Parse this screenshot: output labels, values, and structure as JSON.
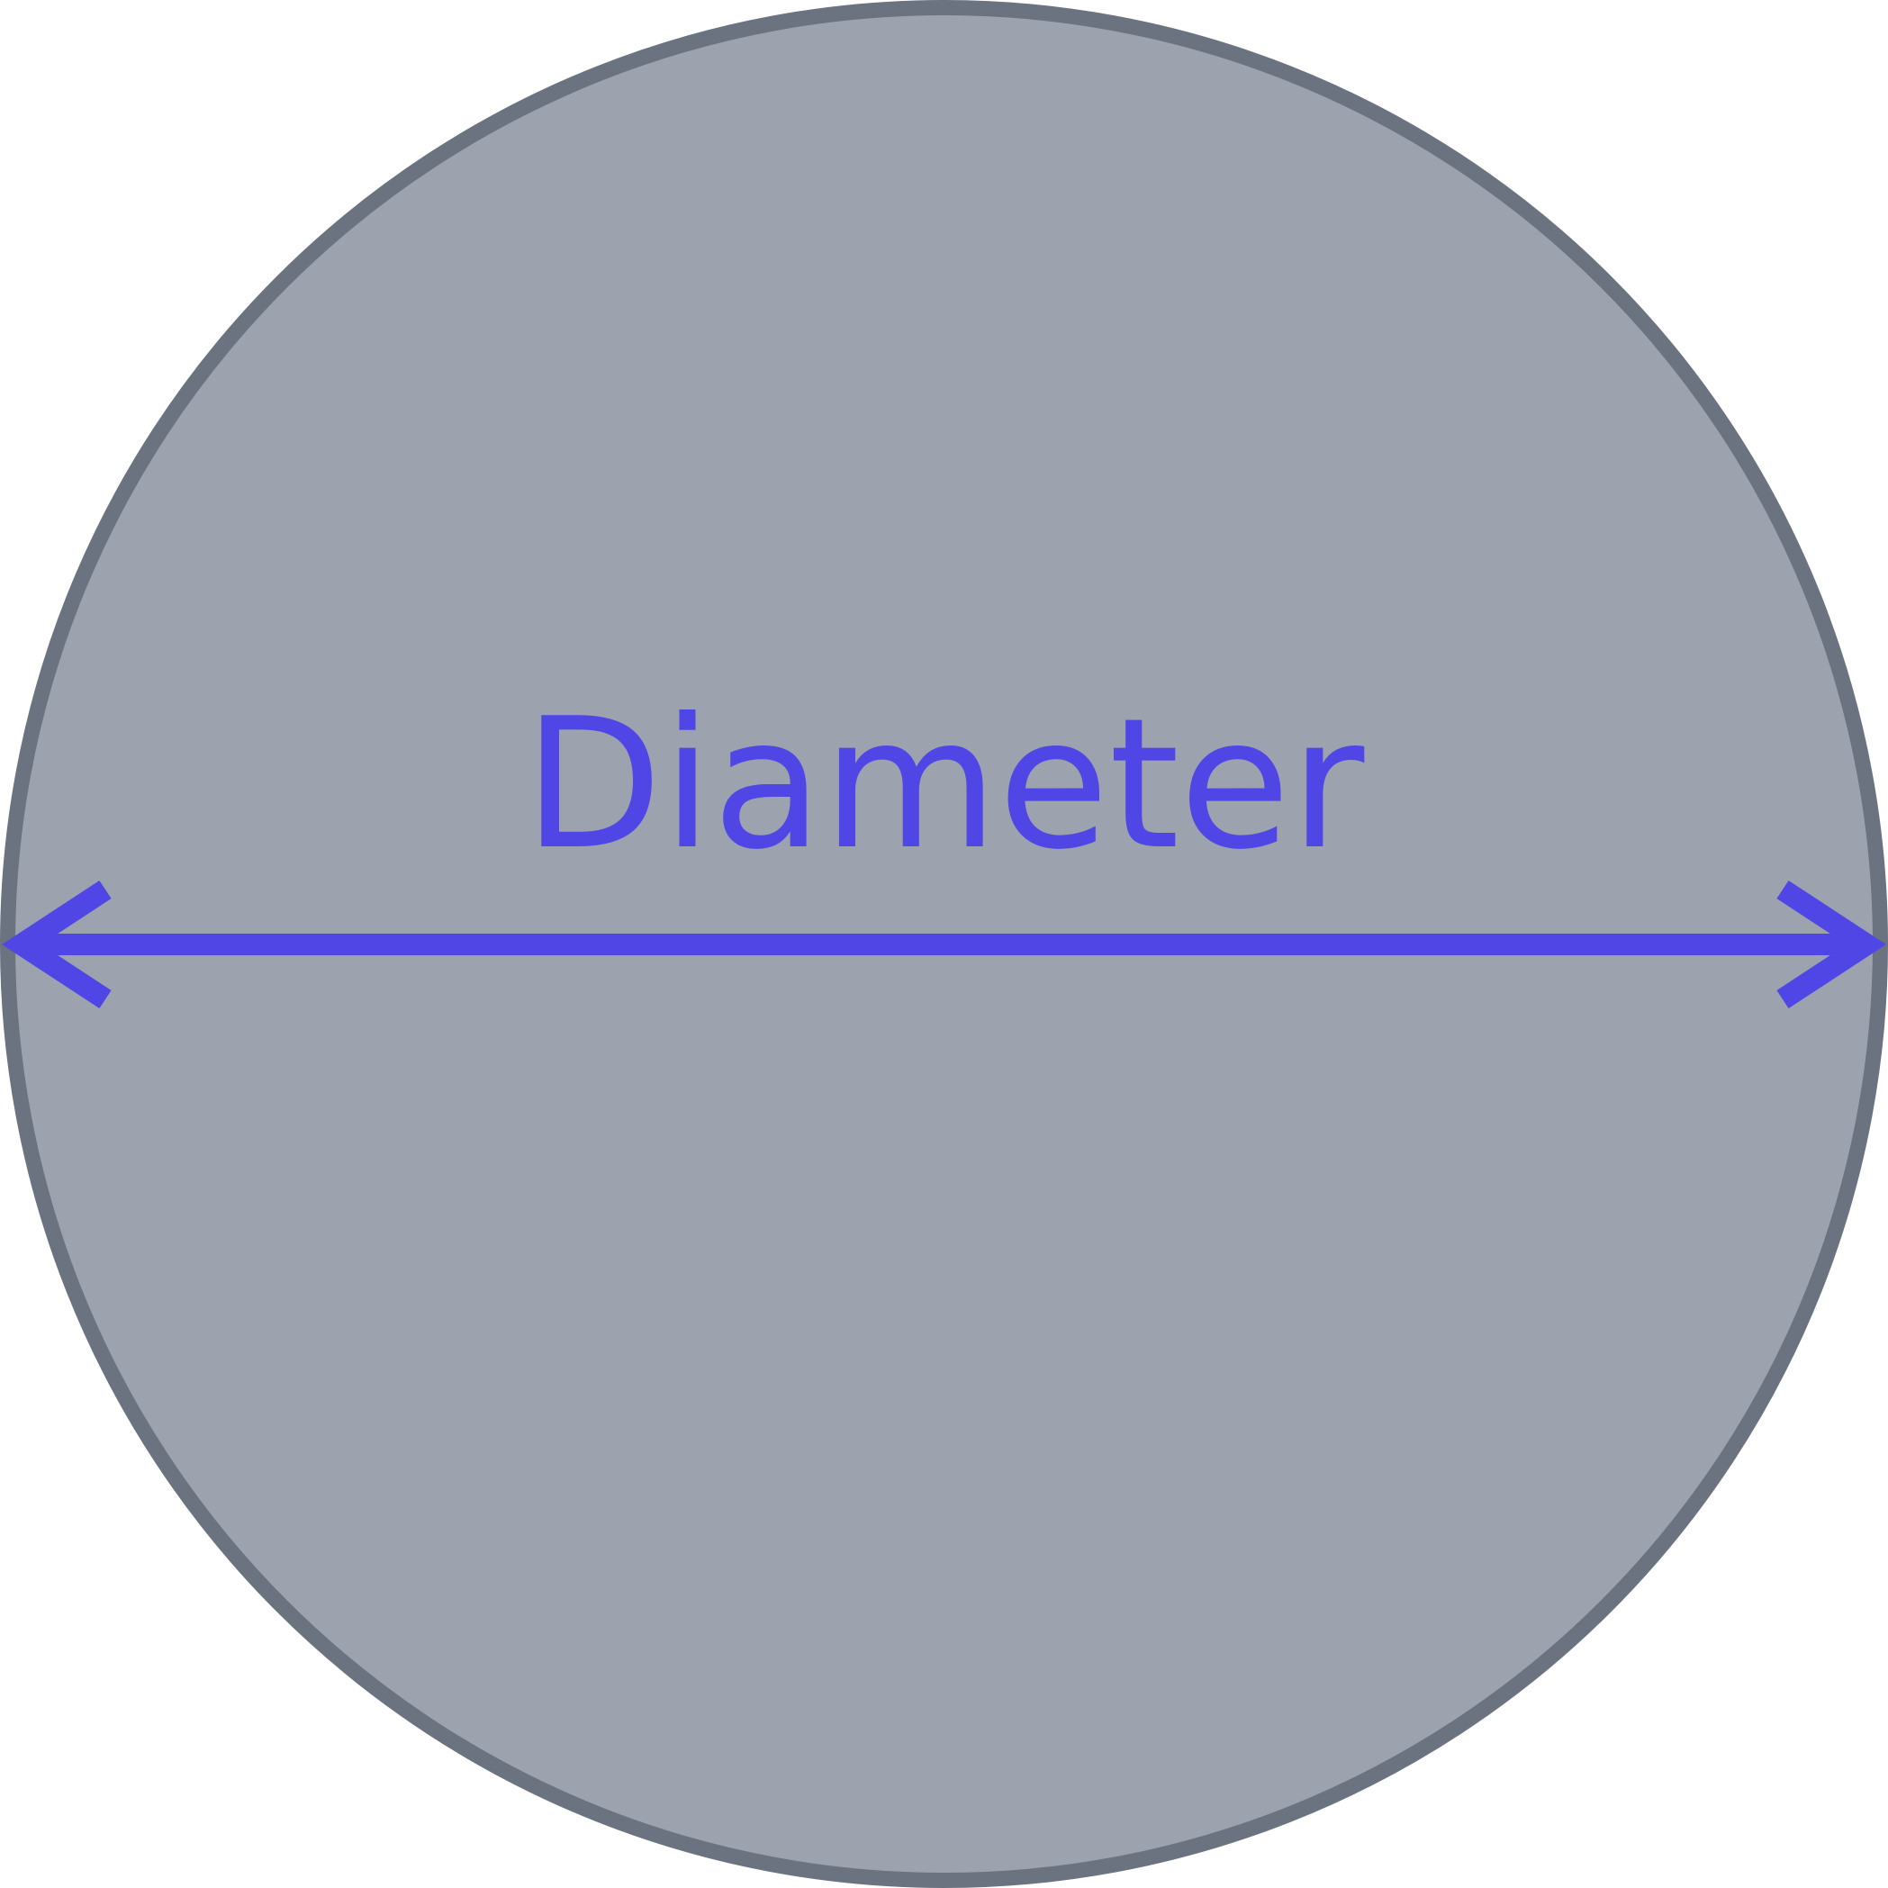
{
  "diagram": {
    "label": "Diameter",
    "circle_fill": "#9CA2AE",
    "circle_stroke": "#6B7280",
    "accent_color": "#4F46E5"
  }
}
